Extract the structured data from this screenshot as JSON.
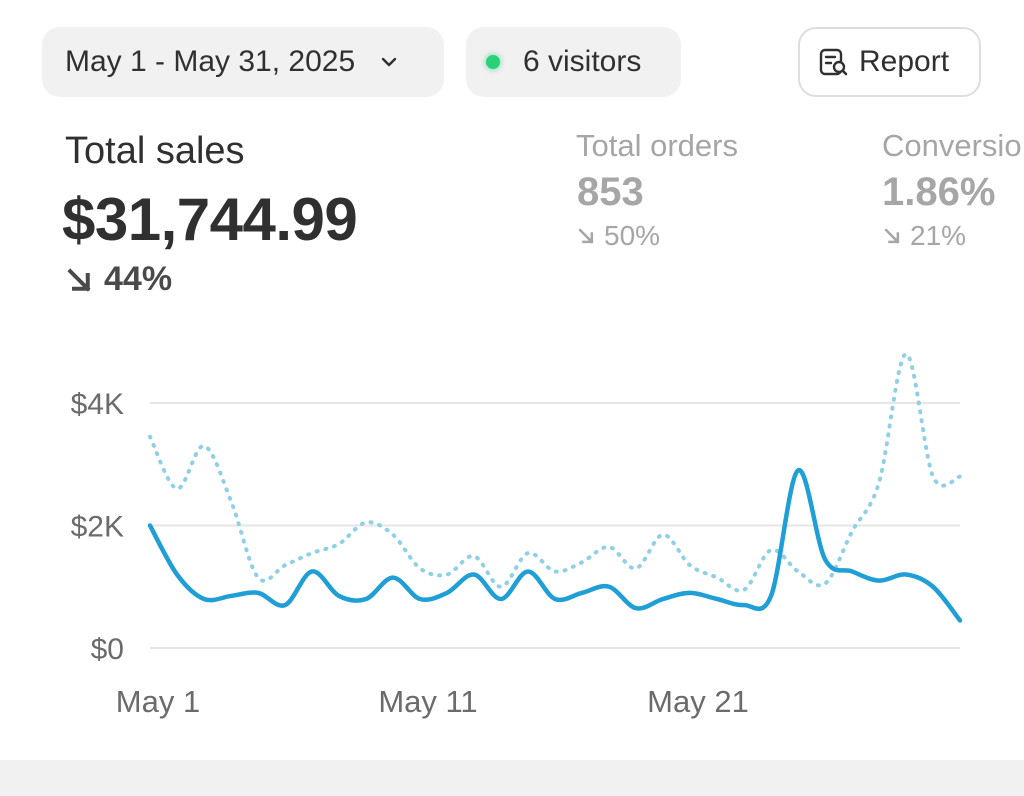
{
  "toolbar": {
    "date_range": "May 1 - May 31, 2025",
    "visitors": "6 visitors",
    "report_label": "Report"
  },
  "metrics": {
    "total_sales": {
      "label": "Total sales",
      "value": "$31,744.99",
      "change": "44%",
      "direction": "down"
    },
    "total_orders": {
      "label": "Total orders",
      "value": "853",
      "change": "50%",
      "direction": "down"
    },
    "conversion": {
      "label": "Conversio",
      "value": "1.86%",
      "change": "21%",
      "direction": "down"
    }
  },
  "colors": {
    "primary_line": "#1f9fd6",
    "comparison_line": "#8fd0e6",
    "live_dot": "#29d17a"
  },
  "chart_data": {
    "type": "line",
    "xlabel": "",
    "ylabel": "",
    "x_tick_labels": [
      "May 1",
      "May 11",
      "May 21"
    ],
    "y_tick_labels": [
      "$0",
      "$2K",
      "$4K"
    ],
    "ylim": [
      0,
      4000
    ],
    "grid": true,
    "x": [
      1,
      2,
      3,
      4,
      5,
      6,
      7,
      8,
      9,
      10,
      11,
      12,
      13,
      14,
      15,
      16,
      17,
      18,
      19,
      20,
      21,
      22,
      23,
      24,
      25,
      26,
      27,
      28,
      29,
      30,
      31
    ],
    "series": [
      {
        "style": "solid",
        "values": [
          2000,
          1200,
          800,
          850,
          900,
          700,
          1250,
          850,
          800,
          1150,
          800,
          900,
          1200,
          800,
          1250,
          800,
          900,
          1000,
          650,
          800,
          900,
          800,
          700,
          850,
          2900,
          1450,
          1250,
          1100,
          1200,
          1000,
          450
        ]
      },
      {
        "style": "dotted",
        "values": [
          3450,
          2600,
          3300,
          2400,
          1150,
          1350,
          1550,
          1700,
          2050,
          1850,
          1300,
          1200,
          1500,
          1000,
          1550,
          1250,
          1400,
          1650,
          1300,
          1850,
          1350,
          1150,
          950,
          1600,
          1250,
          1050,
          1900,
          2700,
          4800,
          2800,
          2800
        ]
      }
    ]
  }
}
